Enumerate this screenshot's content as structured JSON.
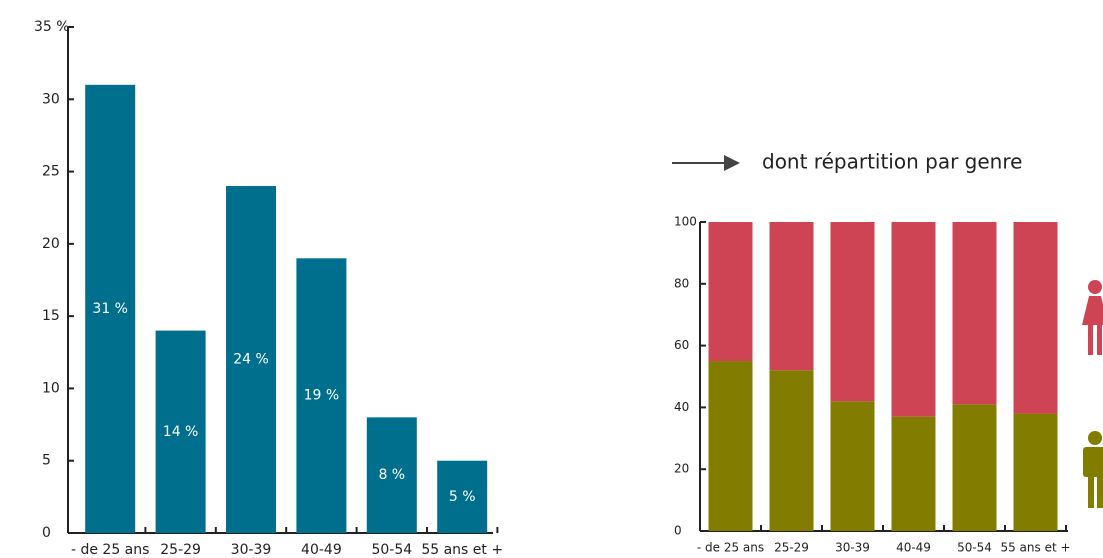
{
  "chart_data": [
    {
      "type": "bar",
      "categories": [
        "- de 25 ans",
        "25-29",
        "30-39",
        "40-49",
        "50-54",
        "55 ans et +"
      ],
      "values": [
        31,
        14,
        24,
        19,
        8,
        5
      ],
      "value_labels": [
        "31 %",
        "14 %",
        "24 %",
        "19 %",
        "8 %",
        "5 %"
      ],
      "color": "#006f8e",
      "ylim": [
        0,
        35
      ],
      "yticks": [
        0,
        5,
        10,
        15,
        20,
        25,
        30,
        {
          "value": 35,
          "label": "35 %"
        }
      ]
    },
    {
      "type": "stacked_bar",
      "annotation": "dont répartition par genre",
      "categories": [
        "- de 25 ans",
        "25-29",
        "30-39",
        "40-49",
        "50-54",
        "55 ans et +"
      ],
      "series": [
        {
          "color": "#827c00",
          "values": [
            55,
            52,
            42,
            37,
            41,
            38
          ]
        },
        {
          "color": "#cf4455",
          "values": [
            45,
            48,
            58,
            63,
            59,
            62
          ]
        }
      ],
      "ylim": [
        0,
        100
      ],
      "yticks": [
        0,
        20,
        40,
        60,
        80,
        100
      ]
    }
  ]
}
